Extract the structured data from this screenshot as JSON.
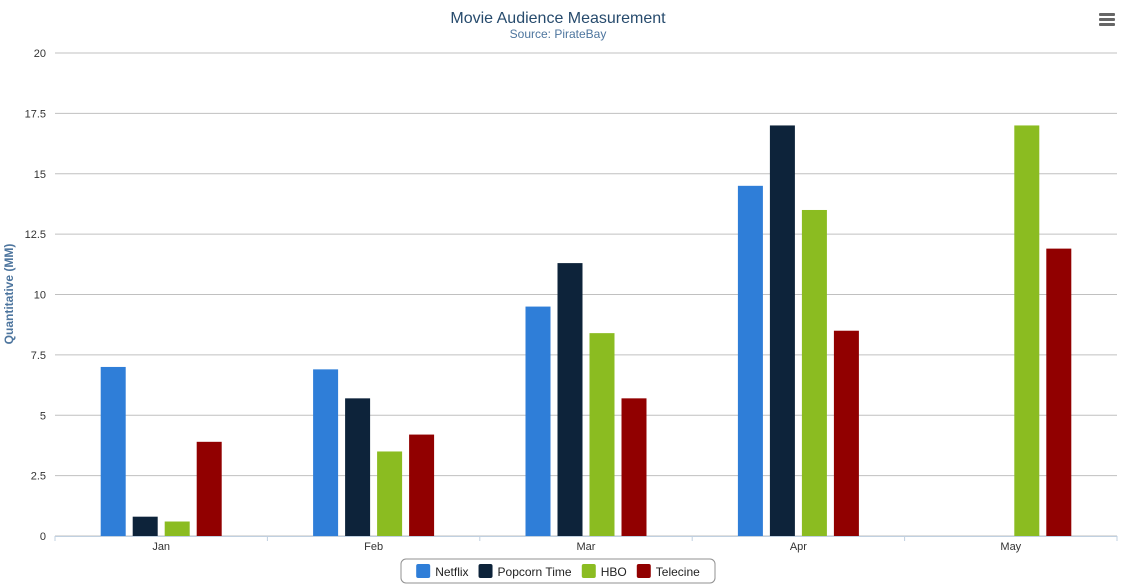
{
  "chart_data": {
    "type": "bar",
    "title": "Movie Audience Measurement",
    "subtitle": "Source: PirateBay",
    "xlabel": "",
    "ylabel": "Quantitative (MM)",
    "ylim": [
      0,
      20
    ],
    "yticks": [
      "0",
      "2.5",
      "5",
      "7.5",
      "10",
      "12.5",
      "15",
      "17.5",
      "20"
    ],
    "grid": true,
    "legend_position": "bottom-center",
    "categories": [
      "Jan",
      "Feb",
      "Mar",
      "Apr",
      "May"
    ],
    "series": [
      {
        "name": "Netflix",
        "color": "#2f7ed8",
        "values": [
          7.0,
          6.9,
          9.5,
          14.5,
          null
        ]
      },
      {
        "name": "Popcorn Time",
        "color": "#0d233a",
        "values": [
          0.8,
          5.7,
          11.3,
          17.0,
          null
        ]
      },
      {
        "name": "HBO",
        "color": "#8bbc21",
        "values": [
          0.6,
          3.5,
          8.4,
          13.5,
          17.0
        ]
      },
      {
        "name": "Telecine",
        "color": "#910000",
        "values": [
          3.9,
          4.2,
          5.7,
          8.5,
          11.9
        ]
      }
    ]
  },
  "ui": {
    "menu_icon": "hamburger-menu-icon"
  }
}
